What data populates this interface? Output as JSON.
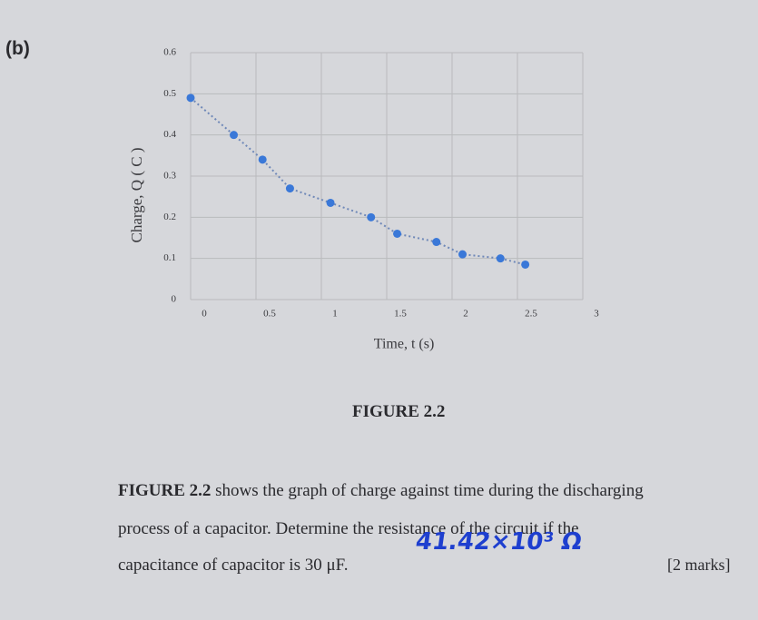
{
  "part_label": "(b)",
  "chart_data": {
    "type": "scatter",
    "x_label": "Time, t (s)",
    "y_label": "Charge, Q ( C )",
    "xlim": [
      0,
      3
    ],
    "xticks": [
      0,
      0.5,
      1,
      1.5,
      2,
      2.5,
      3
    ],
    "ylim": [
      0,
      0.6
    ],
    "yticks": [
      0,
      0.1,
      0.2,
      0.3,
      0.4,
      0.5,
      0.6
    ],
    "grid": true,
    "connect": "dotted",
    "series": [
      {
        "color": "#3a78d8",
        "x": [
          0,
          0.33,
          0.55,
          0.76,
          1.07,
          1.38,
          1.58,
          1.88,
          2.08,
          2.37,
          2.56
        ],
        "values": [
          0.49,
          0.4,
          0.34,
          0.27,
          0.235,
          0.2,
          0.16,
          0.14,
          0.11,
          0.1,
          0.085
        ]
      }
    ]
  },
  "figure_caption": "FIGURE 2.2",
  "question": {
    "lead": "FIGURE 2.2",
    "lines": [
      "shows the graph of charge against time during the discharging",
      "process of a capacitor. Determine the resistance of the circuit if the",
      "capacitance of capacitor is 30 μF."
    ]
  },
  "handwritten_answer": "41.42×10³ Ω",
  "marks": "[2 marks]"
}
